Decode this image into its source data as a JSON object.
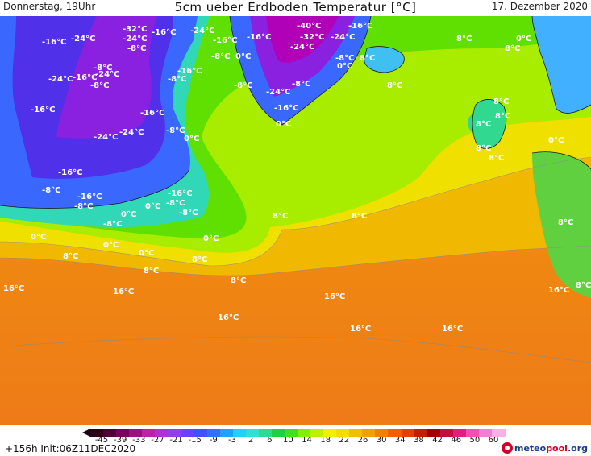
{
  "header": {
    "left": "Donnerstag, 19Uhr",
    "title": "5cm ueber Erdboden Temperatur [°C]",
    "date": "17. Dezember 2020"
  },
  "footer": {
    "init": "+156h Init:06Z11DEC2020",
    "logo_main": "meteo",
    "logo_pool": "pool",
    "logo_tld": ".org"
  },
  "legend": {
    "ticks": [
      "-45",
      "-39",
      "-33",
      "-27",
      "-21",
      "-15",
      "-9",
      "-3",
      "2",
      "6",
      "10",
      "14",
      "18",
      "22",
      "26",
      "30",
      "34",
      "38",
      "42",
      "46",
      "50",
      "60"
    ],
    "colors": [
      "#2a0018",
      "#4d0038",
      "#78005a",
      "#9e1080",
      "#c020a8",
      "#b030d8",
      "#9040e8",
      "#6a40ff",
      "#4050ff",
      "#3070ff",
      "#20a0ff",
      "#20d0ff",
      "#30e0d0",
      "#30d890",
      "#20d040",
      "#40e020",
      "#80f000",
      "#c0f000",
      "#f0f000",
      "#f0e000",
      "#f0c000",
      "#f0a000",
      "#f08000",
      "#f06000",
      "#e04000",
      "#c02000",
      "#a00000",
      "#c01040",
      "#e02080",
      "#f050b0",
      "#f080d0",
      "#f8b0e8"
    ]
  },
  "map": {
    "labels": [
      {
        "text": "-16°C"
      },
      {
        "text": "-24°C"
      },
      {
        "text": "-32°C"
      },
      {
        "text": "-24°C"
      },
      {
        "text": "-16°C"
      },
      {
        "text": "-24°C"
      },
      {
        "text": "-16°C"
      },
      {
        "text": "-16°C"
      },
      {
        "text": "-40°C"
      },
      {
        "text": "-16°C"
      },
      {
        "text": "-32°C"
      },
      {
        "text": "-24°C"
      },
      {
        "text": "-24°C"
      },
      {
        "text": "-8°C"
      },
      {
        "text": "-8°C"
      },
      {
        "text": "0°C"
      },
      {
        "text": "-8°C"
      },
      {
        "text": "0°C"
      },
      {
        "text": "8°C"
      },
      {
        "text": "8°C"
      },
      {
        "text": "0°C"
      },
      {
        "text": "-16°C"
      },
      {
        "text": "-24°C"
      },
      {
        "text": "-8°C"
      },
      {
        "text": "-16°C"
      },
      {
        "text": "-8°C"
      },
      {
        "text": "-24°C"
      },
      {
        "text": "-8°C"
      },
      {
        "text": "-16°C"
      },
      {
        "text": "-8°C"
      },
      {
        "text": "-24°C"
      },
      {
        "text": "-16°C"
      },
      {
        "text": "-16°C"
      },
      {
        "text": "8°C"
      },
      {
        "text": "8°C"
      },
      {
        "text": "-8°C"
      },
      {
        "text": "-24°C"
      },
      {
        "text": "-24°C"
      },
      {
        "text": "-8°C"
      },
      {
        "text": "0°C"
      },
      {
        "text": "0°C"
      },
      {
        "text": "8°C"
      },
      {
        "text": "8°C"
      },
      {
        "text": "-16°C"
      },
      {
        "text": "-16°C"
      },
      {
        "text": "-8°C"
      },
      {
        "text": "-8°C"
      },
      {
        "text": "-16°C"
      },
      {
        "text": "-8°C"
      },
      {
        "text": "0°C"
      },
      {
        "text": "-8°C"
      },
      {
        "text": "8°C"
      },
      {
        "text": "8°C"
      },
      {
        "text": "8°C"
      },
      {
        "text": "-8°C"
      },
      {
        "text": "0°C"
      },
      {
        "text": "0°C"
      },
      {
        "text": "0°C"
      },
      {
        "text": "0°C"
      },
      {
        "text": "8°C"
      },
      {
        "text": "0°C"
      },
      {
        "text": "8°C"
      },
      {
        "text": "8°C"
      },
      {
        "text": "8°C"
      },
      {
        "text": "16°C"
      },
      {
        "text": "16°C"
      },
      {
        "text": "16°C"
      },
      {
        "text": "16°C"
      },
      {
        "text": "16°C"
      },
      {
        "text": "16°C"
      },
      {
        "text": "16°C"
      },
      {
        "text": "8°C"
      },
      {
        "text": "0°C"
      },
      {
        "text": "8°C"
      },
      {
        "text": "8°C"
      },
      {
        "text": "8°C"
      }
    ]
  }
}
